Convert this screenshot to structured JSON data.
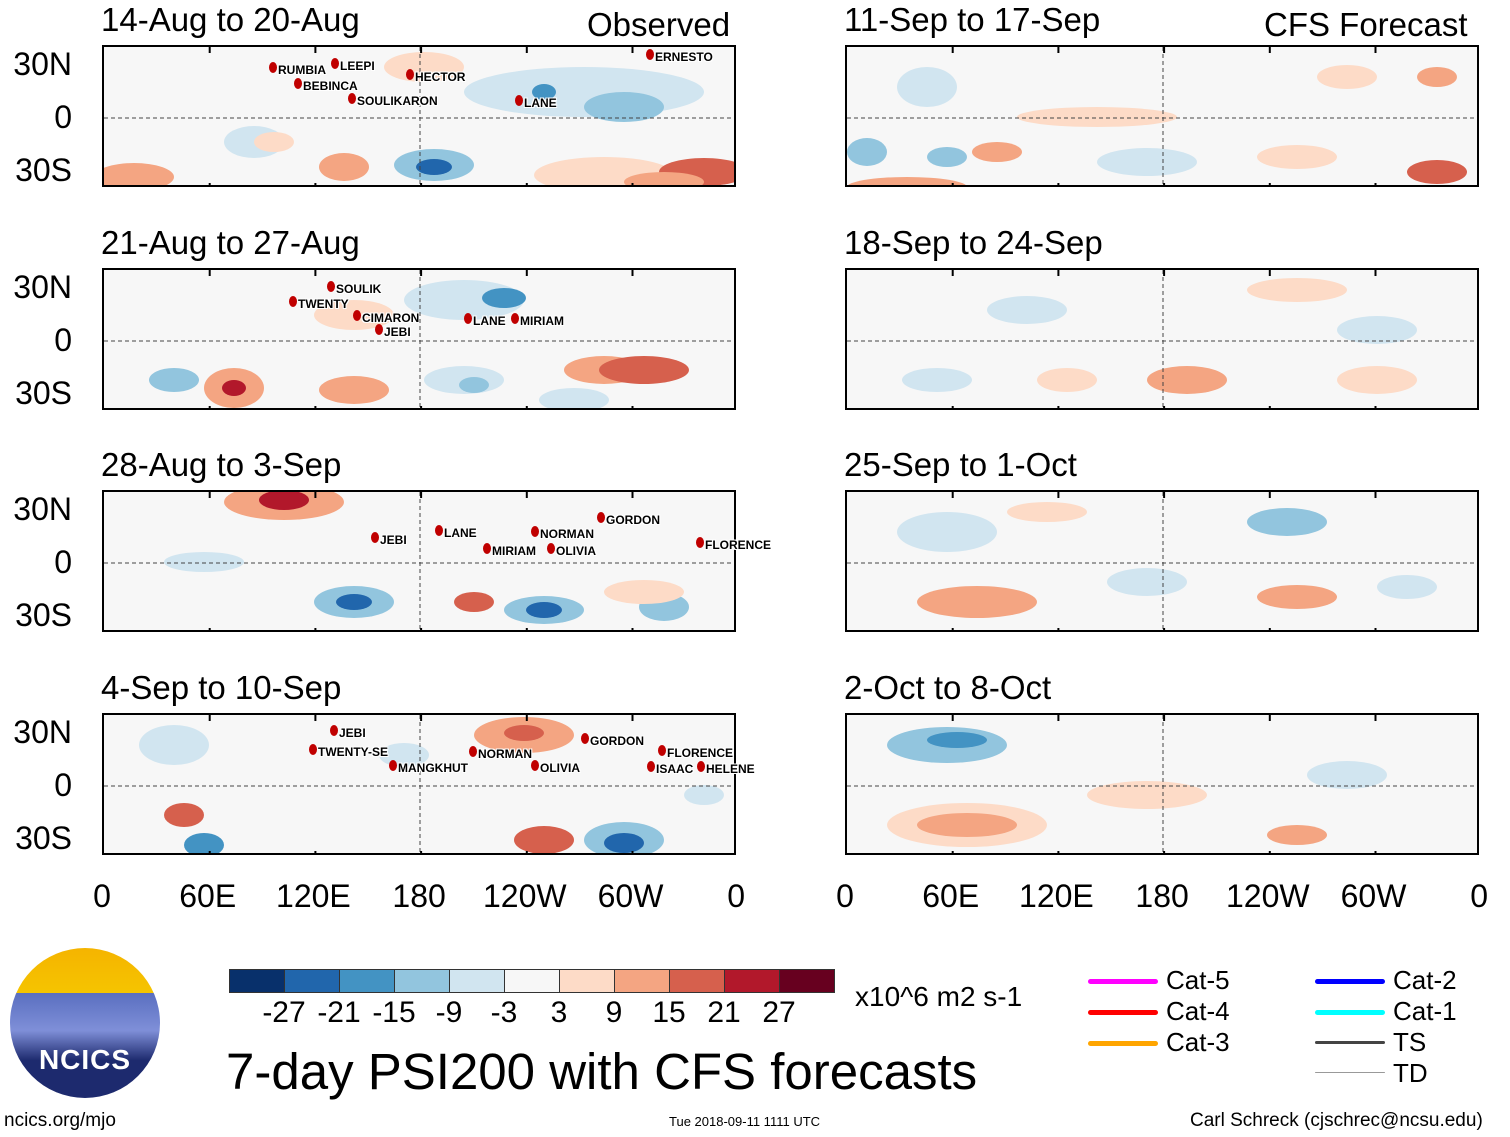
{
  "chart_data": {
    "type": "heatmap",
    "title": "7-day PSI200 with CFS forecasts",
    "units": "x10^6 m2 s-1",
    "column_headers": [
      "Observed",
      "CFS Forecast"
    ],
    "xticks": [
      "0",
      "60E",
      "120E",
      "180",
      "120W",
      "60W",
      "0"
    ],
    "yticks": [
      "30N",
      "0",
      "30S"
    ],
    "colorbar": {
      "levels": [
        "-27",
        "-21",
        "-15",
        "-9",
        "-3",
        "3",
        "9",
        "15",
        "21",
        "27"
      ],
      "colors": [
        "#08306b",
        "#2166ac",
        "#4393c3",
        "#92c5de",
        "#d1e5f0",
        "#f7f7f7",
        "#fddbc7",
        "#f4a582",
        "#d6604d",
        "#b2182b",
        "#67001f"
      ]
    },
    "panels": [
      {
        "title": "14-Aug to 20-Aug",
        "type": "observed",
        "storms": [
          "ERNESTO",
          "RUMBIA",
          "LEEPI",
          "BEBINCA",
          "HECTOR",
          "SOULIKARON",
          "LANE"
        ]
      },
      {
        "title": "21-Aug to 27-Aug",
        "type": "observed",
        "storms": [
          "SOULIK",
          "TWENTY",
          "CIMARON",
          "JEBI",
          "LANE",
          "MIRIAM"
        ]
      },
      {
        "title": "28-Aug to 3-Sep",
        "type": "observed",
        "storms": [
          "JEBI",
          "LANE",
          "MIRIAM",
          "NORMAN",
          "OLIVIA",
          "GORDON",
          "FLORENCE"
        ]
      },
      {
        "title": "4-Sep to 10-Sep",
        "type": "observed",
        "storms": [
          "JEBI",
          "TWENTY-SE",
          "MANGKHUT",
          "NORMAN",
          "OLIVIA",
          "GORDON",
          "FLORENCE",
          "ISAAC",
          "HELENE"
        ]
      },
      {
        "title": "11-Sep to 17-Sep",
        "type": "forecast"
      },
      {
        "title": "18-Sep to 24-Sep",
        "type": "forecast"
      },
      {
        "title": "25-Sep to 1-Oct",
        "type": "forecast"
      },
      {
        "title": "2-Oct to 8-Oct",
        "type": "forecast"
      }
    ],
    "legend": [
      {
        "label": "Cat-5",
        "color": "#ff00ff"
      },
      {
        "label": "Cat-4",
        "color": "#ff0000"
      },
      {
        "label": "Cat-3",
        "color": "#ffa500"
      },
      {
        "label": "Cat-2",
        "color": "#0000ff"
      },
      {
        "label": "Cat-1",
        "color": "#00ffff"
      },
      {
        "label": "TS",
        "color": "#444444"
      },
      {
        "label": "TD",
        "color": "#999999"
      }
    ]
  },
  "footer": {
    "logo_text": "NCICS",
    "url": "ncics.org/mjo",
    "timestamp": "Tue 2018-09-11 1111 UTC",
    "credit": "Carl Schreck (cjschrec@ncsu.edu)"
  }
}
